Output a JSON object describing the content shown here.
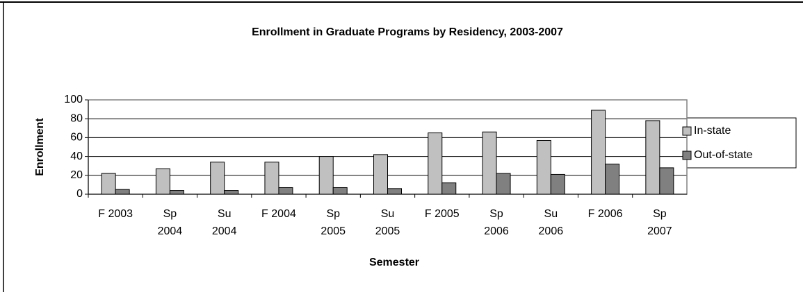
{
  "chart_data": {
    "type": "bar",
    "title": "Enrollment in Graduate Programs by Residency, 2003-2007",
    "x_label": "Semester",
    "y_label": "Enrollment",
    "categories": [
      "F 2003",
      "Sp 2004",
      "Su 2004",
      "F 2004",
      "Sp 2005",
      "Su 2005",
      "F 2005",
      "Sp 2006",
      "Su 2006",
      "F 2006",
      "Sp 2007"
    ],
    "series": [
      {
        "name": "In-state",
        "color": "#c0c0c0",
        "values": [
          22,
          27,
          34,
          34,
          40,
          42,
          65,
          66,
          57,
          89,
          78
        ]
      },
      {
        "name": "Out-of-state",
        "color": "#808080",
        "values": [
          5,
          4,
          4,
          7,
          7,
          6,
          12,
          22,
          21,
          32,
          28
        ]
      }
    ],
    "ylim": [
      0,
      100
    ],
    "yticks": [
      0,
      20,
      40,
      60,
      80,
      100
    ],
    "grid": true,
    "legend": "right"
  }
}
